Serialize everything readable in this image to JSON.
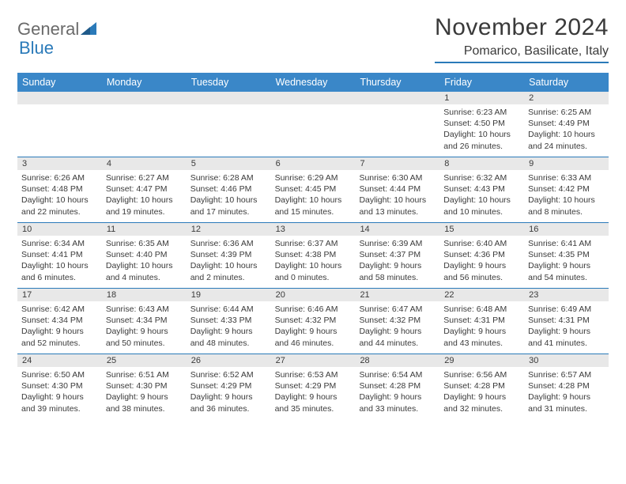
{
  "logo": {
    "text1": "General",
    "text2": "Blue"
  },
  "title": "November 2024",
  "location": "Pomarico, Basilicate, Italy",
  "accent_color": "#3a87c8",
  "rule_color": "#2a7ab9",
  "daynum_bg": "#e8e8e8",
  "day_headers": [
    "Sunday",
    "Monday",
    "Tuesday",
    "Wednesday",
    "Thursday",
    "Friday",
    "Saturday"
  ],
  "weeks": [
    [
      {
        "day": "",
        "sunrise": "",
        "sunset": "",
        "daylight": ""
      },
      {
        "day": "",
        "sunrise": "",
        "sunset": "",
        "daylight": ""
      },
      {
        "day": "",
        "sunrise": "",
        "sunset": "",
        "daylight": ""
      },
      {
        "day": "",
        "sunrise": "",
        "sunset": "",
        "daylight": ""
      },
      {
        "day": "",
        "sunrise": "",
        "sunset": "",
        "daylight": ""
      },
      {
        "day": "1",
        "sunrise": "Sunrise: 6:23 AM",
        "sunset": "Sunset: 4:50 PM",
        "daylight": "Daylight: 10 hours and 26 minutes."
      },
      {
        "day": "2",
        "sunrise": "Sunrise: 6:25 AM",
        "sunset": "Sunset: 4:49 PM",
        "daylight": "Daylight: 10 hours and 24 minutes."
      }
    ],
    [
      {
        "day": "3",
        "sunrise": "Sunrise: 6:26 AM",
        "sunset": "Sunset: 4:48 PM",
        "daylight": "Daylight: 10 hours and 22 minutes."
      },
      {
        "day": "4",
        "sunrise": "Sunrise: 6:27 AM",
        "sunset": "Sunset: 4:47 PM",
        "daylight": "Daylight: 10 hours and 19 minutes."
      },
      {
        "day": "5",
        "sunrise": "Sunrise: 6:28 AM",
        "sunset": "Sunset: 4:46 PM",
        "daylight": "Daylight: 10 hours and 17 minutes."
      },
      {
        "day": "6",
        "sunrise": "Sunrise: 6:29 AM",
        "sunset": "Sunset: 4:45 PM",
        "daylight": "Daylight: 10 hours and 15 minutes."
      },
      {
        "day": "7",
        "sunrise": "Sunrise: 6:30 AM",
        "sunset": "Sunset: 4:44 PM",
        "daylight": "Daylight: 10 hours and 13 minutes."
      },
      {
        "day": "8",
        "sunrise": "Sunrise: 6:32 AM",
        "sunset": "Sunset: 4:43 PM",
        "daylight": "Daylight: 10 hours and 10 minutes."
      },
      {
        "day": "9",
        "sunrise": "Sunrise: 6:33 AM",
        "sunset": "Sunset: 4:42 PM",
        "daylight": "Daylight: 10 hours and 8 minutes."
      }
    ],
    [
      {
        "day": "10",
        "sunrise": "Sunrise: 6:34 AM",
        "sunset": "Sunset: 4:41 PM",
        "daylight": "Daylight: 10 hours and 6 minutes."
      },
      {
        "day": "11",
        "sunrise": "Sunrise: 6:35 AM",
        "sunset": "Sunset: 4:40 PM",
        "daylight": "Daylight: 10 hours and 4 minutes."
      },
      {
        "day": "12",
        "sunrise": "Sunrise: 6:36 AM",
        "sunset": "Sunset: 4:39 PM",
        "daylight": "Daylight: 10 hours and 2 minutes."
      },
      {
        "day": "13",
        "sunrise": "Sunrise: 6:37 AM",
        "sunset": "Sunset: 4:38 PM",
        "daylight": "Daylight: 10 hours and 0 minutes."
      },
      {
        "day": "14",
        "sunrise": "Sunrise: 6:39 AM",
        "sunset": "Sunset: 4:37 PM",
        "daylight": "Daylight: 9 hours and 58 minutes."
      },
      {
        "day": "15",
        "sunrise": "Sunrise: 6:40 AM",
        "sunset": "Sunset: 4:36 PM",
        "daylight": "Daylight: 9 hours and 56 minutes."
      },
      {
        "day": "16",
        "sunrise": "Sunrise: 6:41 AM",
        "sunset": "Sunset: 4:35 PM",
        "daylight": "Daylight: 9 hours and 54 minutes."
      }
    ],
    [
      {
        "day": "17",
        "sunrise": "Sunrise: 6:42 AM",
        "sunset": "Sunset: 4:34 PM",
        "daylight": "Daylight: 9 hours and 52 minutes."
      },
      {
        "day": "18",
        "sunrise": "Sunrise: 6:43 AM",
        "sunset": "Sunset: 4:34 PM",
        "daylight": "Daylight: 9 hours and 50 minutes."
      },
      {
        "day": "19",
        "sunrise": "Sunrise: 6:44 AM",
        "sunset": "Sunset: 4:33 PM",
        "daylight": "Daylight: 9 hours and 48 minutes."
      },
      {
        "day": "20",
        "sunrise": "Sunrise: 6:46 AM",
        "sunset": "Sunset: 4:32 PM",
        "daylight": "Daylight: 9 hours and 46 minutes."
      },
      {
        "day": "21",
        "sunrise": "Sunrise: 6:47 AM",
        "sunset": "Sunset: 4:32 PM",
        "daylight": "Daylight: 9 hours and 44 minutes."
      },
      {
        "day": "22",
        "sunrise": "Sunrise: 6:48 AM",
        "sunset": "Sunset: 4:31 PM",
        "daylight": "Daylight: 9 hours and 43 minutes."
      },
      {
        "day": "23",
        "sunrise": "Sunrise: 6:49 AM",
        "sunset": "Sunset: 4:31 PM",
        "daylight": "Daylight: 9 hours and 41 minutes."
      }
    ],
    [
      {
        "day": "24",
        "sunrise": "Sunrise: 6:50 AM",
        "sunset": "Sunset: 4:30 PM",
        "daylight": "Daylight: 9 hours and 39 minutes."
      },
      {
        "day": "25",
        "sunrise": "Sunrise: 6:51 AM",
        "sunset": "Sunset: 4:30 PM",
        "daylight": "Daylight: 9 hours and 38 minutes."
      },
      {
        "day": "26",
        "sunrise": "Sunrise: 6:52 AM",
        "sunset": "Sunset: 4:29 PM",
        "daylight": "Daylight: 9 hours and 36 minutes."
      },
      {
        "day": "27",
        "sunrise": "Sunrise: 6:53 AM",
        "sunset": "Sunset: 4:29 PM",
        "daylight": "Daylight: 9 hours and 35 minutes."
      },
      {
        "day": "28",
        "sunrise": "Sunrise: 6:54 AM",
        "sunset": "Sunset: 4:28 PM",
        "daylight": "Daylight: 9 hours and 33 minutes."
      },
      {
        "day": "29",
        "sunrise": "Sunrise: 6:56 AM",
        "sunset": "Sunset: 4:28 PM",
        "daylight": "Daylight: 9 hours and 32 minutes."
      },
      {
        "day": "30",
        "sunrise": "Sunrise: 6:57 AM",
        "sunset": "Sunset: 4:28 PM",
        "daylight": "Daylight: 9 hours and 31 minutes."
      }
    ]
  ]
}
